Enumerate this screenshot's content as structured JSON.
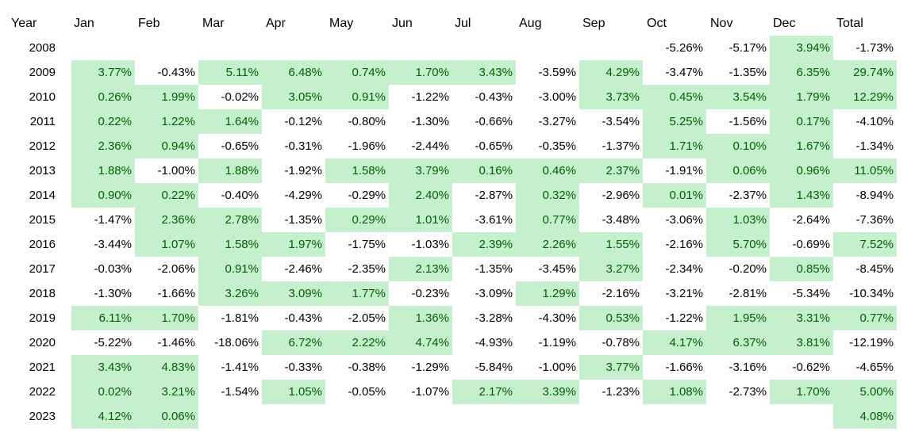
{
  "chart_data": {
    "type": "table",
    "columns": [
      "Year",
      "Jan",
      "Feb",
      "Mar",
      "Apr",
      "May",
      "Jun",
      "Jul",
      "Aug",
      "Sep",
      "Oct",
      "Nov",
      "Dec",
      "Total"
    ],
    "rows": [
      {
        "year": "2008",
        "values": [
          null,
          null,
          null,
          null,
          null,
          null,
          null,
          null,
          null,
          "-5.26%",
          "-5.17%",
          "3.94%",
          "-1.73%"
        ]
      },
      {
        "year": "2009",
        "values": [
          "3.77%",
          "-0.43%",
          "5.11%",
          "6.48%",
          "0.74%",
          "1.70%",
          "3.43%",
          "-3.59%",
          "4.29%",
          "-3.47%",
          "-1.35%",
          "6.35%",
          "29.74%"
        ]
      },
      {
        "year": "2010",
        "values": [
          "0.26%",
          "1.99%",
          "-0.02%",
          "3.05%",
          "0.91%",
          "-1.22%",
          "-0.43%",
          "-3.00%",
          "3.73%",
          "0.45%",
          "3.54%",
          "1.79%",
          "12.29%"
        ]
      },
      {
        "year": "2011",
        "values": [
          "0.22%",
          "1.22%",
          "1.64%",
          "-0.12%",
          "-0.80%",
          "-1.30%",
          "-0.66%",
          "-3.27%",
          "-3.54%",
          "5.25%",
          "-1.56%",
          "0.17%",
          "-4.10%"
        ]
      },
      {
        "year": "2012",
        "values": [
          "2.36%",
          "0.94%",
          "-0.65%",
          "-0.31%",
          "-1.96%",
          "-2.44%",
          "-0.65%",
          "-0.35%",
          "-1.37%",
          "1.71%",
          "0.10%",
          "1.67%",
          "-1.34%"
        ]
      },
      {
        "year": "2013",
        "values": [
          "1.88%",
          "-1.00%",
          "1.88%",
          "-1.92%",
          "1.58%",
          "3.79%",
          "0.16%",
          "0.46%",
          "2.37%",
          "-1.91%",
          "0.06%",
          "0.96%",
          "11.05%"
        ]
      },
      {
        "year": "2014",
        "values": [
          "0.90%",
          "0.22%",
          "-0.40%",
          "-4.29%",
          "-0.29%",
          "2.40%",
          "-2.87%",
          "0.32%",
          "-2.96%",
          "0.01%",
          "-2.37%",
          "1.43%",
          "-8.94%"
        ]
      },
      {
        "year": "2015",
        "values": [
          "-1.47%",
          "2.36%",
          "2.78%",
          "-1.35%",
          "0.29%",
          "1.01%",
          "-3.61%",
          "0.77%",
          "-3.48%",
          "-3.06%",
          "1.03%",
          "-2.64%",
          "-7.36%"
        ]
      },
      {
        "year": "2016",
        "values": [
          "-3.44%",
          "1.07%",
          "1.58%",
          "1.97%",
          "-1.75%",
          "-1.03%",
          "2.39%",
          "2.26%",
          "1.55%",
          "-2.16%",
          "5.70%",
          "-0.69%",
          "7.52%"
        ]
      },
      {
        "year": "2017",
        "values": [
          "-0.03%",
          "-2.06%",
          "0.91%",
          "-2.46%",
          "-2.35%",
          "2.13%",
          "-1.35%",
          "-3.45%",
          "3.27%",
          "-2.34%",
          "-0.20%",
          "0.85%",
          "-8.45%"
        ]
      },
      {
        "year": "2018",
        "values": [
          "-1.30%",
          "-1.66%",
          "3.26%",
          "3.09%",
          "1.77%",
          "-0.23%",
          "-3.09%",
          "1.29%",
          "-2.16%",
          "-3.21%",
          "-2.81%",
          "-5.34%",
          "-10.34%"
        ]
      },
      {
        "year": "2019",
        "values": [
          "6.11%",
          "1.70%",
          "-1.81%",
          "-0.43%",
          "-2.05%",
          "1.36%",
          "-3.28%",
          "-4.30%",
          "0.53%",
          "-1.22%",
          "1.95%",
          "3.31%",
          "0.77%"
        ]
      },
      {
        "year": "2020",
        "values": [
          "-5.22%",
          "-1.46%",
          "-18.06%",
          "6.72%",
          "2.22%",
          "4.74%",
          "-4.93%",
          "-1.19%",
          "-0.78%",
          "4.17%",
          "6.37%",
          "3.81%",
          "-12.19%"
        ]
      },
      {
        "year": "2021",
        "values": [
          "3.43%",
          "4.83%",
          "-1.41%",
          "-0.33%",
          "-0.38%",
          "-1.29%",
          "-5.84%",
          "-1.00%",
          "3.77%",
          "-1.66%",
          "-3.16%",
          "-0.62%",
          "-4.65%"
        ]
      },
      {
        "year": "2022",
        "values": [
          "0.02%",
          "3.21%",
          "-1.54%",
          "1.05%",
          "-0.05%",
          "-1.07%",
          "2.17%",
          "3.39%",
          "-1.23%",
          "1.08%",
          "-2.73%",
          "1.70%",
          "5.00%"
        ]
      },
      {
        "year": "2023",
        "values": [
          "4.12%",
          "0.06%",
          null,
          null,
          null,
          null,
          null,
          null,
          null,
          null,
          null,
          null,
          "4.08%"
        ]
      }
    ],
    "positive_fill": "#c6efce",
    "positive_text": "#006100",
    "negative_text": "#000000"
  }
}
